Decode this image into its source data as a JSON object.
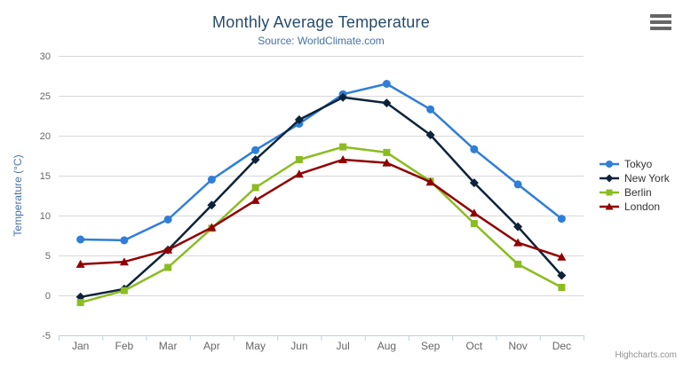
{
  "chart": {
    "credits": "Highcharts.com",
    "context_menu_icon": "hamburger-menu-icon"
  },
  "chart_data": {
    "type": "line",
    "title": "Monthly Average Temperature",
    "subtitle": "Source: WorldClimate.com",
    "categories": [
      "Jan",
      "Feb",
      "Mar",
      "Apr",
      "May",
      "Jun",
      "Jul",
      "Aug",
      "Sep",
      "Oct",
      "Nov",
      "Dec"
    ],
    "xlabel": "",
    "ylabel": "Temperature (°C)",
    "ylim": [
      -5,
      30
    ],
    "yticks": [
      -5,
      0,
      5,
      10,
      15,
      20,
      25,
      30
    ],
    "grid": true,
    "legend_position": "right",
    "colors": {
      "grid_line": "#d8d8d8",
      "axis_line": "#c0d0e0",
      "axis_label": "#666666",
      "axis_title": "#4572a7",
      "title": "#274b6d",
      "subtitle": "#4572a7"
    },
    "series": [
      {
        "name": "Tokyo",
        "color": "#2f7ed8",
        "marker": "circle",
        "values": [
          7.0,
          6.9,
          9.5,
          14.5,
          18.2,
          21.5,
          25.2,
          26.5,
          23.3,
          18.3,
          13.9,
          9.6
        ]
      },
      {
        "name": "New York",
        "color": "#0d233a",
        "marker": "diamond",
        "values": [
          -0.2,
          0.8,
          5.7,
          11.3,
          17.0,
          22.0,
          24.8,
          24.1,
          20.1,
          14.1,
          8.6,
          2.5
        ]
      },
      {
        "name": "Berlin",
        "color": "#8bbc21",
        "marker": "square",
        "values": [
          -0.9,
          0.6,
          3.5,
          8.4,
          13.5,
          17.0,
          18.6,
          17.9,
          14.3,
          9.0,
          3.9,
          1.0
        ]
      },
      {
        "name": "London",
        "color": "#910000",
        "marker": "triangle",
        "values": [
          3.9,
          4.2,
          5.7,
          8.5,
          11.9,
          15.2,
          17.0,
          16.6,
          14.2,
          10.3,
          6.6,
          4.8
        ]
      }
    ]
  }
}
